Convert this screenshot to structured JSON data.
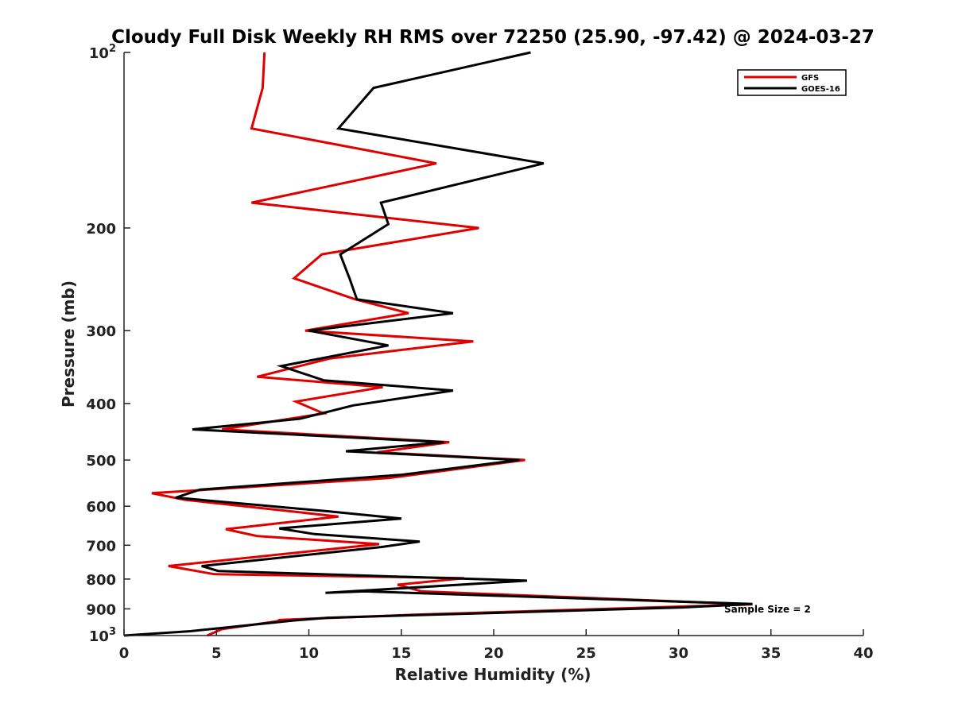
{
  "chart_data": {
    "type": "line",
    "title": "Cloudy Full Disk Weekly RH RMS over 72250 (25.90, -97.42) @ 2024-03-27",
    "xlabel": "Relative Humidity (%)",
    "ylabel": "Pressure (mb)",
    "xlim": [
      0,
      40
    ],
    "ylim": [
      1000,
      100
    ],
    "yscale": "log",
    "x_ticks": [
      "0",
      "5",
      "10",
      "15",
      "20",
      "25",
      "30",
      "35",
      "40"
    ],
    "y_ticks": [
      {
        "value": 100,
        "base": "10",
        "exp": "2"
      },
      {
        "value": 200,
        "label": "200"
      },
      {
        "value": 300,
        "label": "300"
      },
      {
        "value": 400,
        "label": "400"
      },
      {
        "value": 500,
        "label": "500"
      },
      {
        "value": 600,
        "label": "600"
      },
      {
        "value": 700,
        "label": "700"
      },
      {
        "value": 800,
        "label": "800"
      },
      {
        "value": 900,
        "label": "900"
      },
      {
        "value": 1000,
        "base": "10",
        "exp": "3"
      }
    ],
    "legend_position": "top-right",
    "grid": false,
    "annotation": "Sample Size = 2",
    "series": [
      {
        "name": "GFS",
        "color": "#e00000",
        "points": [
          [
            7.6,
            100
          ],
          [
            7.5,
            115
          ],
          [
            6.9,
            135
          ],
          [
            16.9,
            155
          ],
          [
            6.9,
            181
          ],
          [
            19.2,
            200
          ],
          [
            10.7,
            222
          ],
          [
            9.2,
            244
          ],
          [
            12.5,
            265
          ],
          [
            15.4,
            280
          ],
          [
            9.8,
            300
          ],
          [
            18.9,
            313
          ],
          [
            11.1,
            335
          ],
          [
            7.2,
            360
          ],
          [
            14.0,
            375
          ],
          [
            9.3,
            397
          ],
          [
            10.8,
            416
          ],
          [
            5.3,
            443
          ],
          [
            17.6,
            466
          ],
          [
            13.7,
            485
          ],
          [
            21.7,
            500
          ],
          [
            14.3,
            537
          ],
          [
            1.5,
            570
          ],
          [
            3.3,
            585
          ],
          [
            11.6,
            625
          ],
          [
            5.5,
            657
          ],
          [
            7.2,
            675
          ],
          [
            13.8,
            697
          ],
          [
            2.4,
            760
          ],
          [
            4.9,
            785
          ],
          [
            18.4,
            797
          ],
          [
            14.8,
            818
          ],
          [
            16.1,
            840
          ],
          [
            34.0,
            884
          ],
          [
            15.7,
            921
          ],
          [
            8.4,
            940
          ],
          [
            8.3,
            945
          ],
          [
            5.3,
            975
          ],
          [
            4.5,
            1000
          ]
        ]
      },
      {
        "name": "GOES-16",
        "color": "#000000",
        "points": [
          [
            22.0,
            100
          ],
          [
            13.5,
            115
          ],
          [
            11.6,
            135
          ],
          [
            22.7,
            155
          ],
          [
            13.9,
            181
          ],
          [
            14.3,
            197
          ],
          [
            11.7,
            222
          ],
          [
            12.2,
            244
          ],
          [
            12.6,
            265
          ],
          [
            17.8,
            280
          ],
          [
            10.0,
            300
          ],
          [
            14.3,
            318
          ],
          [
            8.5,
            345
          ],
          [
            10.8,
            365
          ],
          [
            17.8,
            380
          ],
          [
            12.4,
            403
          ],
          [
            9.5,
            425
          ],
          [
            3.7,
            443
          ],
          [
            17.3,
            466
          ],
          [
            12.0,
            483
          ],
          [
            21.4,
            500
          ],
          [
            15.0,
            530
          ],
          [
            4.1,
            562
          ],
          [
            2.8,
            580
          ],
          [
            11.0,
            612
          ],
          [
            15.0,
            630
          ],
          [
            8.4,
            655
          ],
          [
            10.3,
            670
          ],
          [
            16.0,
            690
          ],
          [
            13.9,
            705
          ],
          [
            4.2,
            760
          ],
          [
            5.1,
            775
          ],
          [
            21.8,
            805
          ],
          [
            10.9,
            845
          ],
          [
            13.0,
            840
          ],
          [
            34.0,
            883
          ],
          [
            30.2,
            895
          ],
          [
            11.0,
            932
          ],
          [
            9.2,
            942
          ],
          [
            3.6,
            983
          ],
          [
            0.0,
            1000
          ]
        ]
      }
    ]
  }
}
